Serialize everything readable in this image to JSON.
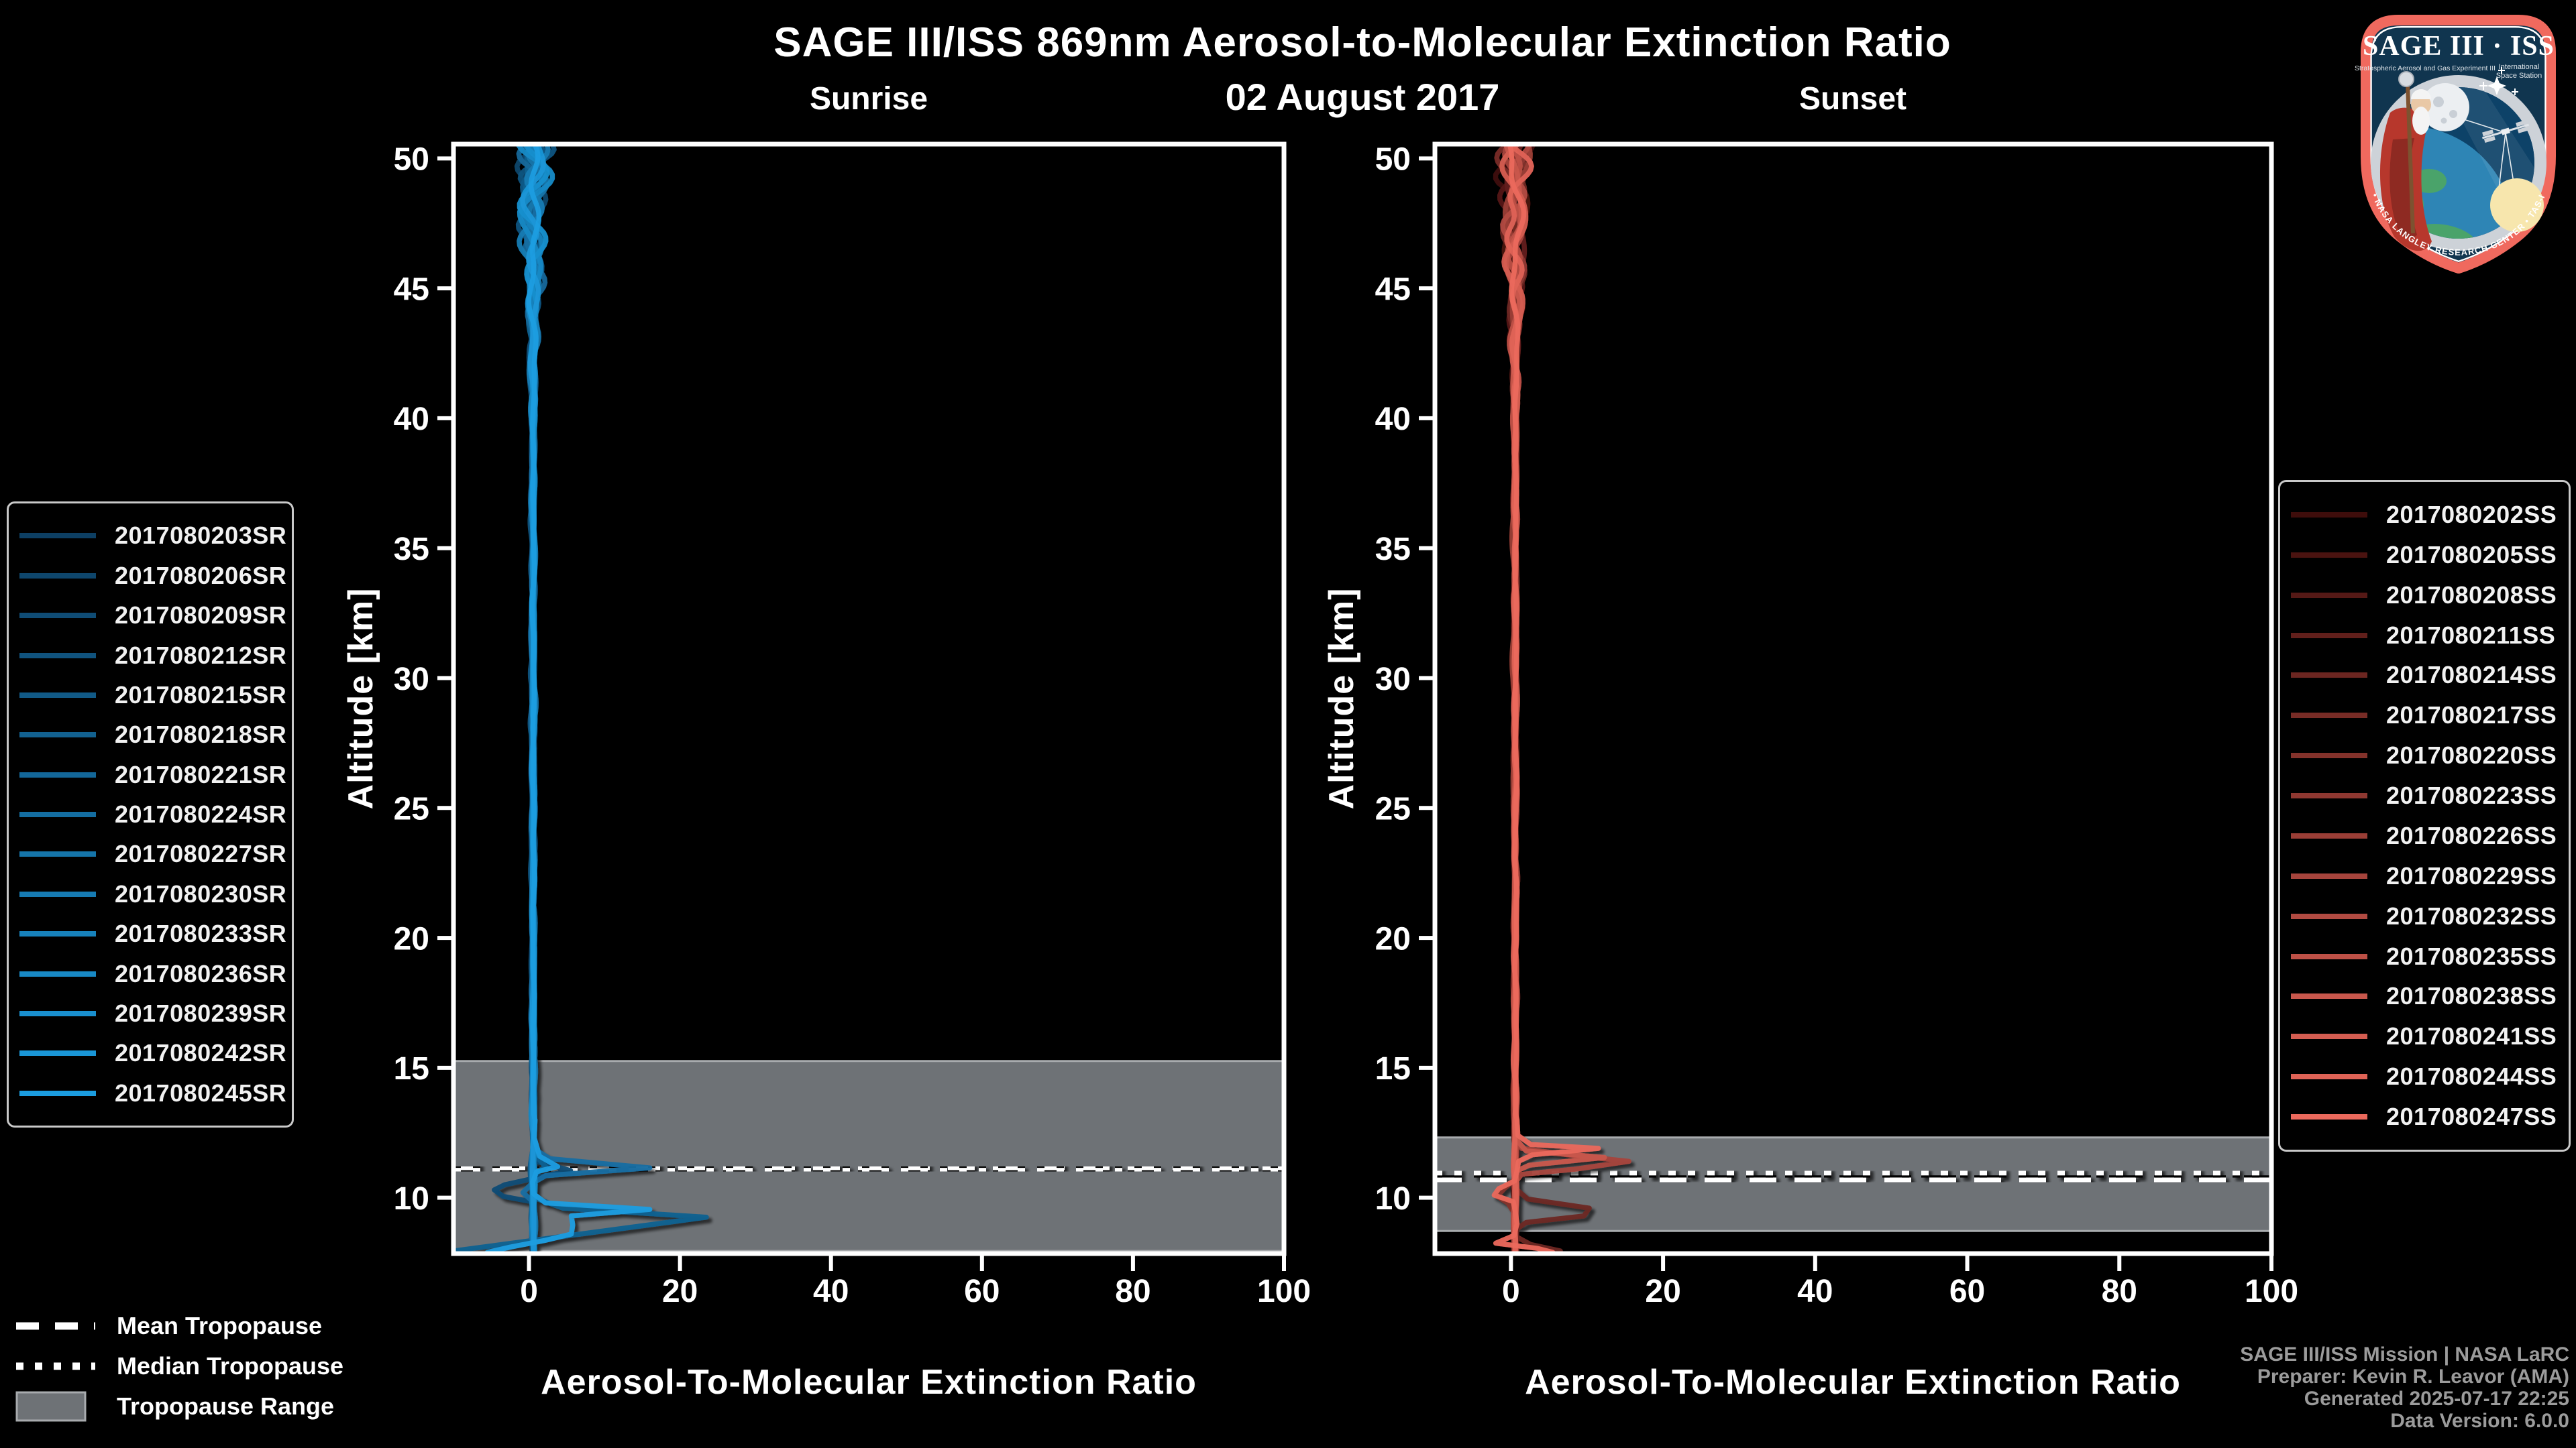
{
  "header": {
    "title": "SAGE III/ISS 869nm Aerosol-to-Molecular Extinction Ratio",
    "date": "02 August 2017"
  },
  "tropopause_legend": {
    "mean_label": "Mean Tropopause",
    "median_label": "Median Tropopause",
    "range_label": "Tropopause Range"
  },
  "footer": {
    "credit_lines": [
      "SAGE III/ISS Mission | NASA LaRC",
      "Preparer: Kevin R. Leavor (AMA)",
      "Generated 2025-07-17 22:25",
      "Data Version: 6.0.0"
    ]
  },
  "logo": {
    "title": "SAGE III · ISS",
    "sub_left": "Stratospheric Aerosol and Gas Experiment III",
    "sub_right_1": "International",
    "sub_right_2": "Space Station",
    "ring_text": "BALL • NASA LANGLEY RESEARCH CENTER • TAS-I • ESA",
    "border_color": "#f0695e",
    "field_color": "#10354f"
  },
  "colors": {
    "band_fill": "#6e7276",
    "band_edge": "#a8abae",
    "spine": "#ffffff"
  },
  "chart_data": [
    {
      "type": "line",
      "title": "Sunrise",
      "xlabel": "Aerosol-To-Molecular Extinction Ratio",
      "ylabel": "Altitude [km]",
      "xlim": [
        -10,
        100
      ],
      "xticks": [
        0,
        20,
        40,
        60,
        80,
        100
      ],
      "ylim": [
        7.85,
        50.55
      ],
      "yticks": [
        10,
        15,
        20,
        25,
        30,
        35,
        40,
        45,
        50
      ],
      "grid": false,
      "legend_position": "outside-left",
      "tropopause": {
        "range_km": [
          7.95,
          15.26
        ],
        "mean_km": 11.17,
        "median_km": 11.04
      },
      "noise_envelope": [
        [
          7.9,
          0.22
        ],
        [
          40,
          0.3
        ],
        [
          42,
          0.55
        ],
        [
          44,
          1.1
        ],
        [
          46,
          1.6
        ],
        [
          48,
          2.1
        ],
        [
          50.6,
          2.6
        ]
      ],
      "series": [
        {
          "label": "2017080203SR",
          "color": "#0d3f63",
          "seed": 101,
          "base": 0.45,
          "amp": 1.35
        },
        {
          "label": "2017080206SR",
          "color": "#0e466c",
          "seed": 102,
          "base": 0.6,
          "amp": 1.1
        },
        {
          "label": "2017080209SR",
          "color": "#0f4c75",
          "seed": 103,
          "base": 0.5,
          "amp": 0.9,
          "points": [
            [
              13,
              0.4
            ],
            [
              12,
              0.5
            ],
            [
              11.4,
              0.9
            ],
            [
              11.05,
              5.5
            ],
            [
              10.8,
              1.5
            ],
            [
              10.5,
              -3.2
            ],
            [
              10.3,
              -4.6
            ],
            [
              10.05,
              -3.4
            ],
            [
              9.85,
              0.3
            ],
            [
              9.5,
              0.5
            ],
            [
              9.0,
              0.5
            ],
            [
              8.5,
              0.4
            ],
            [
              7.9,
              0.5
            ]
          ]
        },
        {
          "label": "2017080212SR",
          "color": "#10537e",
          "seed": 104,
          "base": 0.4,
          "amp": 1.25
        },
        {
          "label": "2017080215SR",
          "color": "#115a87",
          "seed": 105,
          "base": 0.65,
          "amp": 0.8
        },
        {
          "label": "2017080218SR",
          "color": "#126190",
          "seed": 106,
          "base": 0.5,
          "amp": 1.0,
          "points": [
            [
              13,
              0.5
            ],
            [
              12.4,
              0.45
            ],
            [
              11.7,
              0.6
            ],
            [
              11.2,
              2.2
            ],
            [
              10.9,
              0.8
            ],
            [
              10.4,
              0.45
            ],
            [
              10.0,
              0.7
            ],
            [
              9.6,
              4.5
            ],
            [
              9.25,
              23.5
            ],
            [
              7.95,
              -10
            ]
          ]
        },
        {
          "label": "2017080221SR",
          "color": "#136799",
          "seed": 107,
          "base": 0.55,
          "amp": 1.2
        },
        {
          "label": "2017080224SR",
          "color": "#146ea2",
          "seed": 108,
          "base": 0.5,
          "amp": 0.95,
          "points": [
            [
              13,
              0.5
            ],
            [
              12.2,
              0.6
            ],
            [
              11.8,
              1.1
            ],
            [
              11.5,
              2.8
            ],
            [
              11.15,
              16
            ],
            [
              10.85,
              2.2
            ],
            [
              10.55,
              0.4
            ],
            [
              10.2,
              -0.8
            ],
            [
              9.9,
              0.3
            ],
            [
              9.4,
              0.6
            ],
            [
              8.9,
              0.5
            ],
            [
              8.4,
              0.55
            ],
            [
              7.9,
              0.6
            ]
          ]
        },
        {
          "label": "2017080227SR",
          "color": "#1575aa",
          "seed": 109,
          "base": 0.7,
          "amp": 1.0
        },
        {
          "label": "2017080230SR",
          "color": "#167bb3",
          "seed": 110,
          "base": 0.45,
          "amp": 1.3
        },
        {
          "label": "2017080233SR",
          "color": "#1782bc",
          "seed": 111,
          "base": 0.6,
          "amp": 0.85
        },
        {
          "label": "2017080236SR",
          "color": "#1889c5",
          "seed": 112,
          "base": 0.5,
          "amp": 1.15
        },
        {
          "label": "2017080239SR",
          "color": "#198fce",
          "seed": 113,
          "base": 0.65,
          "amp": 0.95
        },
        {
          "label": "2017080242SR",
          "color": "#1a96d7",
          "seed": 114,
          "base": 0.55,
          "amp": 1.05
        },
        {
          "label": "2017080245SR",
          "color": "#1b9de0",
          "seed": 115,
          "base": 0.6,
          "amp": 0.9,
          "points": [
            [
              13,
              0.8
            ],
            [
              12.3,
              0.7
            ],
            [
              11.6,
              1.4
            ],
            [
              11.2,
              3.8
            ],
            [
              11.0,
              1.0
            ],
            [
              10.6,
              0.5
            ],
            [
              10.15,
              0.6
            ],
            [
              9.8,
              2.2
            ],
            [
              9.55,
              16
            ],
            [
              9.3,
              5.6
            ],
            [
              8.95,
              5.8
            ],
            [
              8.6,
              5.6
            ],
            [
              8.35,
              2.0
            ],
            [
              8.1,
              -2.5
            ],
            [
              7.9,
              -5.5
            ]
          ]
        }
      ]
    },
    {
      "type": "line",
      "title": "Sunset",
      "xlabel": "Aerosol-To-Molecular Extinction Ratio",
      "ylabel": "Altitude [km]",
      "xlim": [
        -10,
        100
      ],
      "xticks": [
        0,
        20,
        40,
        60,
        80,
        100
      ],
      "ylim": [
        7.85,
        50.55
      ],
      "yticks": [
        10,
        15,
        20,
        25,
        30,
        35,
        40,
        45,
        50
      ],
      "grid": false,
      "legend_position": "outside-right",
      "tropopause": {
        "range_km": [
          8.72,
          12.32
        ],
        "mean_km": 10.67,
        "median_km": 10.97
      },
      "noise_envelope": [
        [
          7.9,
          0.22
        ],
        [
          40,
          0.3
        ],
        [
          42,
          0.55
        ],
        [
          44,
          1.1
        ],
        [
          46,
          1.6
        ],
        [
          48,
          2.1
        ],
        [
          50.6,
          2.6
        ]
      ],
      "series": [
        {
          "label": "2017080202SS",
          "color": "#3e0d0b",
          "seed": 201,
          "base": 0.5,
          "amp": 1.3
        },
        {
          "label": "2017080205SS",
          "color": "#4a1310",
          "seed": 202,
          "base": 0.6,
          "amp": 1.0
        },
        {
          "label": "2017080208SS",
          "color": "#551916",
          "seed": 203,
          "base": 0.45,
          "amp": 1.2
        },
        {
          "label": "2017080211SS",
          "color": "#611f1b",
          "seed": 204,
          "base": 0.7,
          "amp": 0.9
        },
        {
          "label": "2017080214SS",
          "color": "#6c2621",
          "seed": 205,
          "base": 0.5,
          "amp": 1.0,
          "points": [
            [
              13,
              0.5
            ],
            [
              12.1,
              0.55
            ],
            [
              11.4,
              0.6
            ],
            [
              10.9,
              0.45
            ],
            [
              10.35,
              0.6
            ],
            [
              9.95,
              2.2
            ],
            [
              9.6,
              10.3
            ],
            [
              9.3,
              9.6
            ],
            [
              9.05,
              2.0
            ],
            [
              8.8,
              0.8
            ],
            [
              8.5,
              0.7
            ],
            [
              8.2,
              2.6
            ],
            [
              7.95,
              6.5
            ]
          ]
        },
        {
          "label": "2017080217SS",
          "color": "#782c26",
          "seed": 206,
          "base": 0.55,
          "amp": 1.15
        },
        {
          "label": "2017080220SS",
          "color": "#83322b",
          "seed": 207,
          "base": 0.5,
          "amp": 0.95,
          "points": [
            [
              13,
              0.5
            ],
            [
              12.5,
              0.6
            ],
            [
              11.8,
              0.5
            ],
            [
              11.2,
              0.7
            ],
            [
              10.7,
              0.5
            ],
            [
              10.35,
              -0.9
            ],
            [
              10.05,
              -1.8
            ],
            [
              9.8,
              -0.4
            ],
            [
              9.4,
              0.45
            ],
            [
              9.0,
              0.5
            ],
            [
              8.6,
              0.55
            ],
            [
              8.1,
              0.6
            ],
            [
              7.9,
              0.5
            ]
          ]
        },
        {
          "label": "2017080223SS",
          "color": "#8f3831",
          "seed": 208,
          "base": 0.65,
          "amp": 1.1
        },
        {
          "label": "2017080226SS",
          "color": "#9a3e36",
          "seed": 209,
          "base": 0.45,
          "amp": 1.25
        },
        {
          "label": "2017080229SS",
          "color": "#a6443c",
          "seed": 210,
          "base": 0.55,
          "amp": 0.9,
          "points": [
            [
              13,
              0.5
            ],
            [
              12.3,
              0.6
            ],
            [
              11.9,
              1.4
            ],
            [
              11.65,
              7.5
            ],
            [
              11.4,
              15.5
            ],
            [
              11.1,
              8.5
            ],
            [
              10.9,
              1.4
            ],
            [
              10.55,
              0.45
            ],
            [
              10.2,
              0.55
            ],
            [
              9.9,
              0.6
            ],
            [
              9.5,
              0.5
            ],
            [
              9.0,
              0.6
            ],
            [
              8.5,
              0.5
            ],
            [
              7.9,
              0.6
            ]
          ]
        },
        {
          "label": "2017080232SS",
          "color": "#b14a41",
          "seed": 211,
          "base": 0.6,
          "amp": 1.0
        },
        {
          "label": "2017080235SS",
          "color": "#bd5046",
          "seed": 212,
          "base": 0.5,
          "amp": 1.2
        },
        {
          "label": "2017080238SS",
          "color": "#c8574c",
          "seed": 213,
          "base": 0.55,
          "amp": 0.9,
          "points": [
            [
              13,
              0.6
            ],
            [
              12.2,
              0.8
            ],
            [
              11.8,
              2.0
            ],
            [
              11.55,
              12.3
            ],
            [
              11.25,
              2.4
            ],
            [
              11.0,
              0.55
            ],
            [
              10.6,
              0.6
            ],
            [
              10.2,
              0.45
            ],
            [
              9.8,
              0.55
            ],
            [
              9.3,
              0.6
            ],
            [
              8.8,
              0.5
            ],
            [
              8.3,
              0.6
            ],
            [
              7.9,
              0.55
            ]
          ]
        },
        {
          "label": "2017080241SS",
          "color": "#d45d51",
          "seed": 214,
          "base": 0.65,
          "amp": 1.05
        },
        {
          "label": "2017080244SS",
          "color": "#df6356",
          "seed": 215,
          "base": 0.5,
          "amp": 1.1
        },
        {
          "label": "2017080247SS",
          "color": "#eb695c",
          "seed": 216,
          "base": 0.65,
          "amp": 0.95,
          "points": [
            [
              13,
              0.8
            ],
            [
              12.4,
              0.9
            ],
            [
              12.05,
              2.6
            ],
            [
              11.9,
              11.5
            ],
            [
              11.65,
              2.8
            ],
            [
              11.4,
              1.0
            ],
            [
              11.05,
              0.8
            ],
            [
              10.65,
              0.5
            ],
            [
              10.35,
              -1.6
            ],
            [
              10.1,
              -2.2
            ],
            [
              9.85,
              0.3
            ],
            [
              9.4,
              0.6
            ],
            [
              9.0,
              0.8
            ],
            [
              8.55,
              0.4
            ],
            [
              8.25,
              -2.0
            ],
            [
              8.05,
              3.5
            ],
            [
              7.9,
              5.5
            ]
          ]
        }
      ]
    }
  ]
}
